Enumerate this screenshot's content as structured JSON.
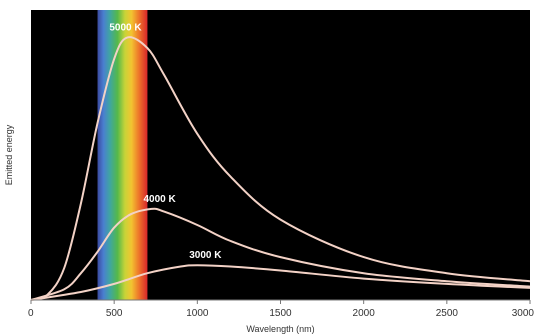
{
  "chart_data": {
    "type": "line",
    "title": "",
    "xlabel": "Wavelength (nm)",
    "ylabel": "Emitted energy",
    "xlim": [
      0,
      3000
    ],
    "ylim": [
      0,
      1
    ],
    "x_ticks": [
      "0",
      "500",
      "1000",
      "1500",
      "2000",
      "2500",
      "3000"
    ],
    "y_ticks": [],
    "visible_band_nm": [
      400,
      700
    ],
    "background": "#000000",
    "curve_color": "#f3d2c6",
    "grid": false,
    "legend": "none",
    "series": [
      {
        "label": "5000 K",
        "x": [
          0,
          100,
          200,
          300,
          400,
          500,
          580,
          700,
          800,
          1000,
          1200,
          1500,
          2000,
          2500,
          3000
        ],
        "y": [
          0,
          0.02,
          0.12,
          0.36,
          0.66,
          0.9,
          0.98,
          0.94,
          0.84,
          0.62,
          0.46,
          0.3,
          0.16,
          0.1,
          0.07
        ]
      },
      {
        "label": "4000 K",
        "x": [
          0,
          200,
          300,
          400,
          500,
          600,
          725,
          800,
          1000,
          1200,
          1500,
          2000,
          2500,
          3000
        ],
        "y": [
          0,
          0.04,
          0.1,
          0.18,
          0.27,
          0.32,
          0.34,
          0.33,
          0.28,
          0.22,
          0.16,
          0.1,
          0.07,
          0.05
        ]
      },
      {
        "label": "3000 K",
        "x": [
          0,
          300,
          500,
          700,
          900,
          1000,
          1200,
          1500,
          2000,
          2500,
          3000
        ],
        "y": [
          0,
          0.03,
          0.06,
          0.1,
          0.125,
          0.13,
          0.125,
          0.11,
          0.08,
          0.06,
          0.045
        ]
      }
    ]
  }
}
